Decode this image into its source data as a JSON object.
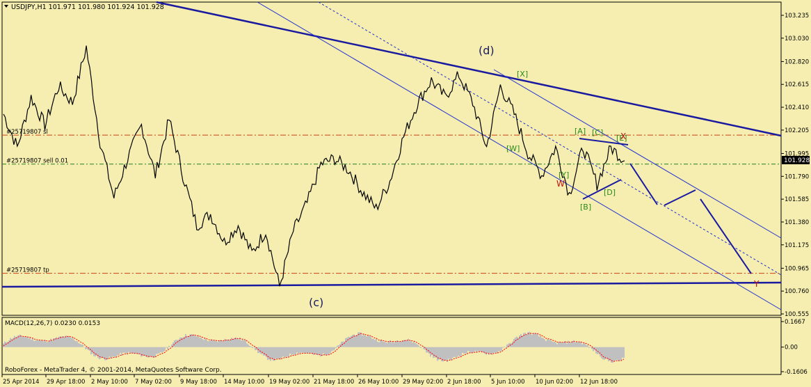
{
  "header": {
    "symbol_line": "USDJPY,H1  101.971 101.980 101.924 101.928"
  },
  "footer": {
    "copyright": "RoboForex - MetaTrader 4, © 2001-2014, MetaQuotes Software Corp."
  },
  "colors": {
    "background": "#f5eeb0",
    "price_line": "#000000",
    "trendline": "#1a1aa0",
    "channel": "#2030d0",
    "sl_tp_line": "#d04010",
    "entry_line": "#208020",
    "wave_green": "#2a8a1a",
    "wave_red": "#c01010",
    "macd_hist": "#c0c0c0",
    "macd_signal": "#ff0000"
  },
  "price_axis": {
    "ticks": [
      "103.235",
      "103.030",
      "102.820",
      "102.615",
      "102.410",
      "102.205",
      "101.995",
      "101.790",
      "101.585",
      "101.380",
      "101.175",
      "100.965",
      "100.760",
      "100.555"
    ],
    "current_price": "101.928"
  },
  "time_axis": {
    "ticks": [
      "25 Apr 2014",
      "29 Apr 18:00",
      "2 May 10:00",
      "7 May 02:00",
      "9 May 18:00",
      "14 May 10:00",
      "19 May 02:00",
      "21 May 18:00",
      "26 May 10:00",
      "29 May 02:00",
      "2 Jun 18:00",
      "5 Jun 10:00",
      "10 Jun 02:00",
      "12 Jun 18:00"
    ]
  },
  "order_lines": [
    {
      "label": "#25719807 sl",
      "price": 102.16
    },
    {
      "label": "#25719807 sell 0.01",
      "price": 101.9
    },
    {
      "label": "#25719807 tp",
      "price": 100.92
    }
  ],
  "wave_labels": [
    {
      "text": "(d)",
      "color": "#1a1a60"
    },
    {
      "text": "(c)",
      "color": "#1a1a60"
    },
    {
      "text": "[X]",
      "color": "#2a8a1a"
    },
    {
      "text": "[W]",
      "color": "#2a8a1a"
    },
    {
      "text": "[Y]",
      "color": "#2a8a1a"
    },
    {
      "text": "W",
      "color": "#c01010"
    },
    {
      "text": "[A]",
      "color": "#2a8a1a"
    },
    {
      "text": "[C]",
      "color": "#2a8a1a"
    },
    {
      "text": "[E]",
      "color": "#2a8a1a"
    },
    {
      "text": "X",
      "color": "#c01010"
    },
    {
      "text": "[B]",
      "color": "#2a8a1a"
    },
    {
      "text": "[D]",
      "color": "#2a8a1a"
    },
    {
      "text": "Y",
      "color": "#c01010"
    }
  ],
  "macd": {
    "label": "MACD(12,26,7) 0.0230 0.0153",
    "ticks": [
      "0.1667",
      "0.00",
      "-0.1606"
    ]
  },
  "chart_data": {
    "type": "line",
    "title": "USDJPY,H1",
    "ohlc": {
      "open": 101.971,
      "high": 101.98,
      "low": 101.924,
      "close": 101.928
    },
    "x_range": [
      "25 Apr 2014",
      "16 Jun 2014"
    ],
    "y_range": [
      100.555,
      103.235
    ],
    "series": [
      {
        "x": [
          "25 Apr 2014",
          "28 Apr",
          "29 Apr",
          "30 Apr",
          "1 May",
          "2 May 10:00",
          "2 May 14:00",
          "5 May",
          "6 May",
          "7 May 02:00",
          "8 May",
          "9 May",
          "9 May 18:00",
          "12 May",
          "13 May",
          "14 May 10:00",
          "15 May",
          "16 May",
          "19 May 02:00",
          "20 May",
          "21 May 02:00",
          "21 May 18:00",
          "22 May",
          "23 May",
          "26 May 10:00",
          "27 May",
          "28 May",
          "29 May 02:00",
          "30 May",
          "2 Jun 06:00",
          "2 Jun 18:00",
          "3 Jun",
          "4 Jun",
          "5 Jun 10:00",
          "5 Jun 20:00",
          "6 Jun",
          "9 Jun",
          "10 Jun 02:00",
          "10 Jun 14:00",
          "11 Jun",
          "11 Jun 16:00",
          "12 Jun",
          "12 Jun 18:00",
          "13 Jun",
          "13 Jun 14:00",
          "16 Jun"
        ],
        "values": [
          102.35,
          102.05,
          102.5,
          102.25,
          102.6,
          102.45,
          102.95,
          102.1,
          101.6,
          101.95,
          102.25,
          101.8,
          102.3,
          101.8,
          101.35,
          101.45,
          101.2,
          101.35,
          101.1,
          101.3,
          100.8,
          101.3,
          101.55,
          101.9,
          101.95,
          101.85,
          101.65,
          101.5,
          101.75,
          102.15,
          102.45,
          102.65,
          102.5,
          102.7,
          102.45,
          102.05,
          102.6,
          102.35,
          102.0,
          101.8,
          102.05,
          101.63,
          102.05,
          101.72,
          102.05,
          101.93
        ]
      }
    ],
    "macd": {
      "params": "12,26,7",
      "main": 0.023,
      "signal": 0.0153,
      "ylim": [
        -0.1606,
        0.1667
      ]
    }
  }
}
